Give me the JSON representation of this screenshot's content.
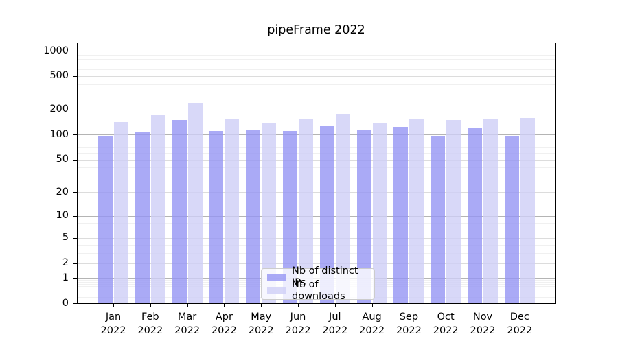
{
  "page": {
    "background": "#ffffff"
  },
  "chart_data": {
    "type": "bar",
    "title": "pipeFrame 2022",
    "categories": [
      "Jan 2022",
      "Feb 2022",
      "Mar 2022",
      "Apr 2022",
      "May 2022",
      "Jun 2022",
      "Jul 2022",
      "Aug 2022",
      "Sep 2022",
      "Oct 2022",
      "Nov 2022",
      "Dec 2022"
    ],
    "series": [
      {
        "name": "Nb of distinct IPs",
        "color": "#9595f4",
        "alpha": 0.8,
        "values": [
          96,
          108,
          150,
          109,
          115,
          110,
          126,
          114,
          123,
          97,
          120,
          97
        ]
      },
      {
        "name": "Nb of downloads",
        "color": "#cecef6",
        "alpha": 0.8,
        "values": [
          140,
          169,
          237,
          153,
          139,
          152,
          177,
          138,
          154,
          148,
          151,
          158
        ]
      }
    ],
    "xlabel": "",
    "ylabel": "",
    "yaxis": {
      "scale": "symlog (pixel position proportional to ln(1+v))",
      "ticks": [
        0,
        1,
        2,
        5,
        10,
        20,
        50,
        100,
        200,
        500,
        1000
      ],
      "major_grid_ticks": [
        1,
        10,
        100,
        1000
      ],
      "mid_grid_ticks": [
        2,
        5,
        20,
        50,
        200,
        500
      ],
      "ylim": [
        0,
        1250
      ],
      "grid": true
    },
    "legend": {
      "visible": true,
      "position": "lower center, inside axes",
      "entries": [
        "Nb of distinct IPs",
        "Nb of downloads"
      ]
    },
    "colors": {
      "grid_major": "#b4b4b4",
      "grid_mid": "#dcdcdc",
      "grid_minor": "#f0f0f0",
      "spine": "#000000",
      "text": "#000000"
    }
  }
}
